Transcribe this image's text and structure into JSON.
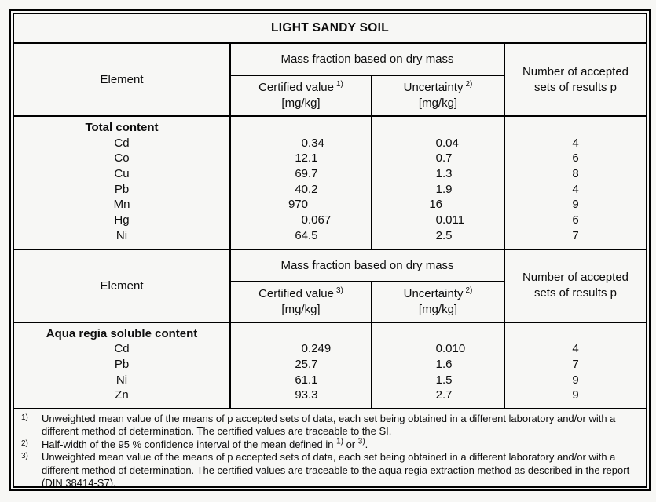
{
  "title": "LIGHT SANDY SOIL",
  "table1": {
    "element_header": "Element",
    "group_header": "Mass fraction based on dry mass",
    "certified_label": "Certified value",
    "certified_sup": "1)",
    "certified_unit": "[mg/kg]",
    "uncertainty_label": "Uncertainty",
    "uncertainty_sup": "2)",
    "uncertainty_unit": "[mg/kg]",
    "accepted_header": "Number of accepted sets of results p",
    "section_heading": "Total content",
    "rows": [
      {
        "element": "Cd",
        "certified": "0.34",
        "uncertainty": "0.04",
        "p": "4"
      },
      {
        "element": "Co",
        "certified": "12.1",
        "uncertainty": "0.7",
        "p": "6"
      },
      {
        "element": "Cu",
        "certified": "69.7",
        "uncertainty": "1.3",
        "p": "8"
      },
      {
        "element": "Pb",
        "certified": "40.2",
        "uncertainty": "1.9",
        "p": "4"
      },
      {
        "element": "Mn",
        "certified": "970",
        "uncertainty": "16",
        "p": "9"
      },
      {
        "element": "Hg",
        "certified": "0.067",
        "uncertainty": "0.011",
        "p": "6"
      },
      {
        "element": "Ni",
        "certified": "64.5",
        "uncertainty": "2.5",
        "p": "7"
      }
    ]
  },
  "table2": {
    "element_header": "Element",
    "group_header": "Mass fraction based on dry mass",
    "certified_label": "Certified value",
    "certified_sup": "3)",
    "certified_unit": "[mg/kg]",
    "uncertainty_label": "Uncertainty",
    "uncertainty_sup": "2)",
    "uncertainty_unit": "[mg/kg]",
    "accepted_header": "Number of accepted sets of results p",
    "section_heading": "Aqua regia soluble content",
    "rows": [
      {
        "element": "Cd",
        "certified": "0.249",
        "uncertainty": "0.010",
        "p": "4"
      },
      {
        "element": "Pb",
        "certified": "25.7",
        "uncertainty": "1.6",
        "p": "7"
      },
      {
        "element": "Ni",
        "certified": "61.1",
        "uncertainty": "1.5",
        "p": "9"
      },
      {
        "element": "Zn",
        "certified": "93.3",
        "uncertainty": "2.7",
        "p": "9"
      }
    ]
  },
  "footnotes": {
    "fn1": {
      "label": "1)",
      "text": "Unweighted mean value of the means of p accepted sets of data, each set being obtained in a different laboratory and/or with a different method of determination. The certified values are traceable to the SI."
    },
    "fn2": {
      "label": "2)",
      "before": "Half-width of the 95 % confidence interval of the mean defined in ",
      "sup_a": "1)",
      "between": " or ",
      "sup_b": "3)",
      "after": "."
    },
    "fn3": {
      "label": "3)",
      "text": "Unweighted mean value of the means of p accepted sets of data, each set being obtained in a different laboratory and/or with a different method of determination. The certified values are traceable to the aqua regia extraction method as described in the report (DIN 38414-S7)."
    }
  }
}
